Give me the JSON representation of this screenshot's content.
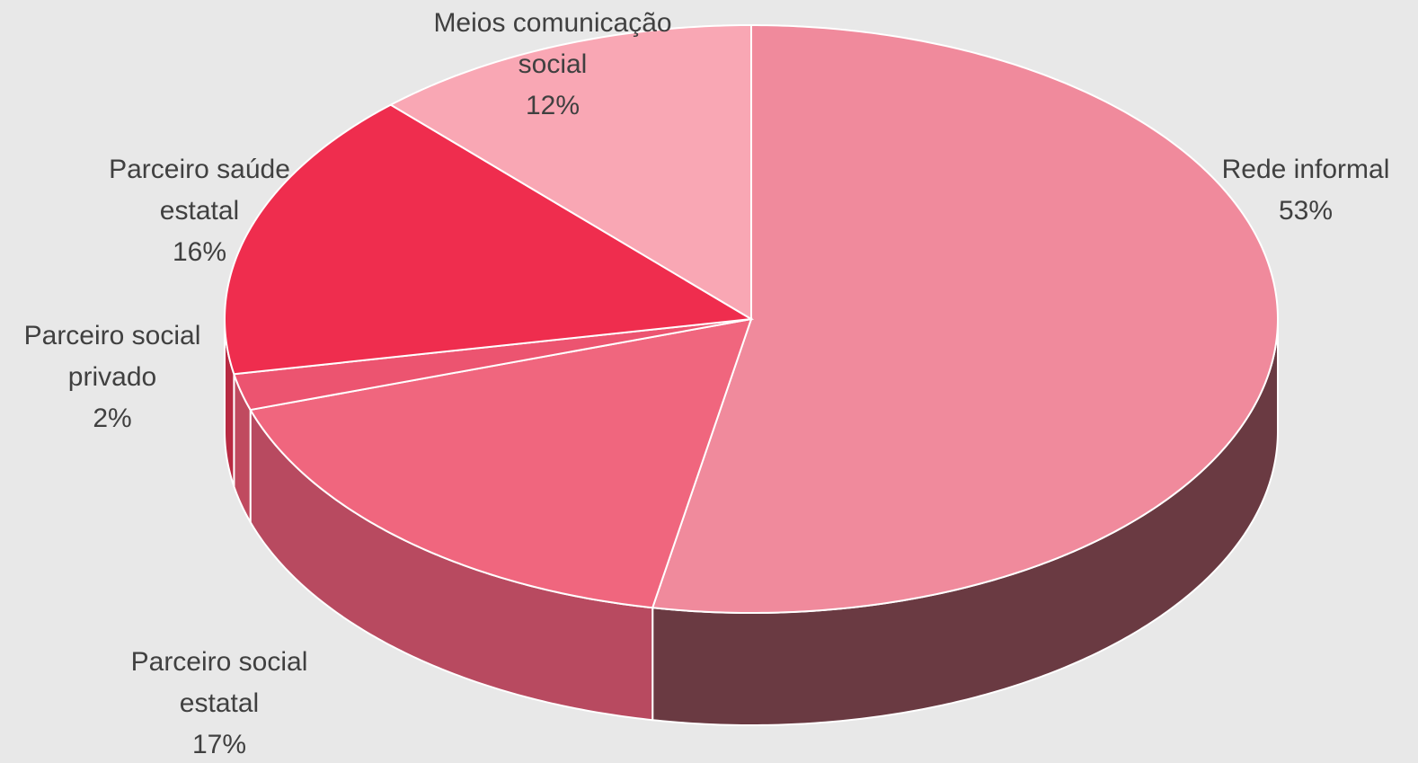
{
  "chart_data": {
    "type": "pie",
    "categories": [
      "Rede informal",
      "Parceiro social estatal",
      "Parceiro social privado",
      "Parceiro saúde estatal",
      "Meios comunicação social"
    ],
    "values": [
      53,
      17,
      2,
      16,
      12
    ],
    "value_labels": [
      "53%",
      "17%",
      "2%",
      "16%",
      "12%"
    ],
    "colors": [
      "#f08a9c",
      "#f0667e",
      "#ec5470",
      "#ef2d4e",
      "#f9a7b4"
    ],
    "side_colors": [
      "#6a3a42",
      "#b84a60",
      "#c04a5f",
      "#b82a42",
      "#c07a86"
    ]
  }
}
